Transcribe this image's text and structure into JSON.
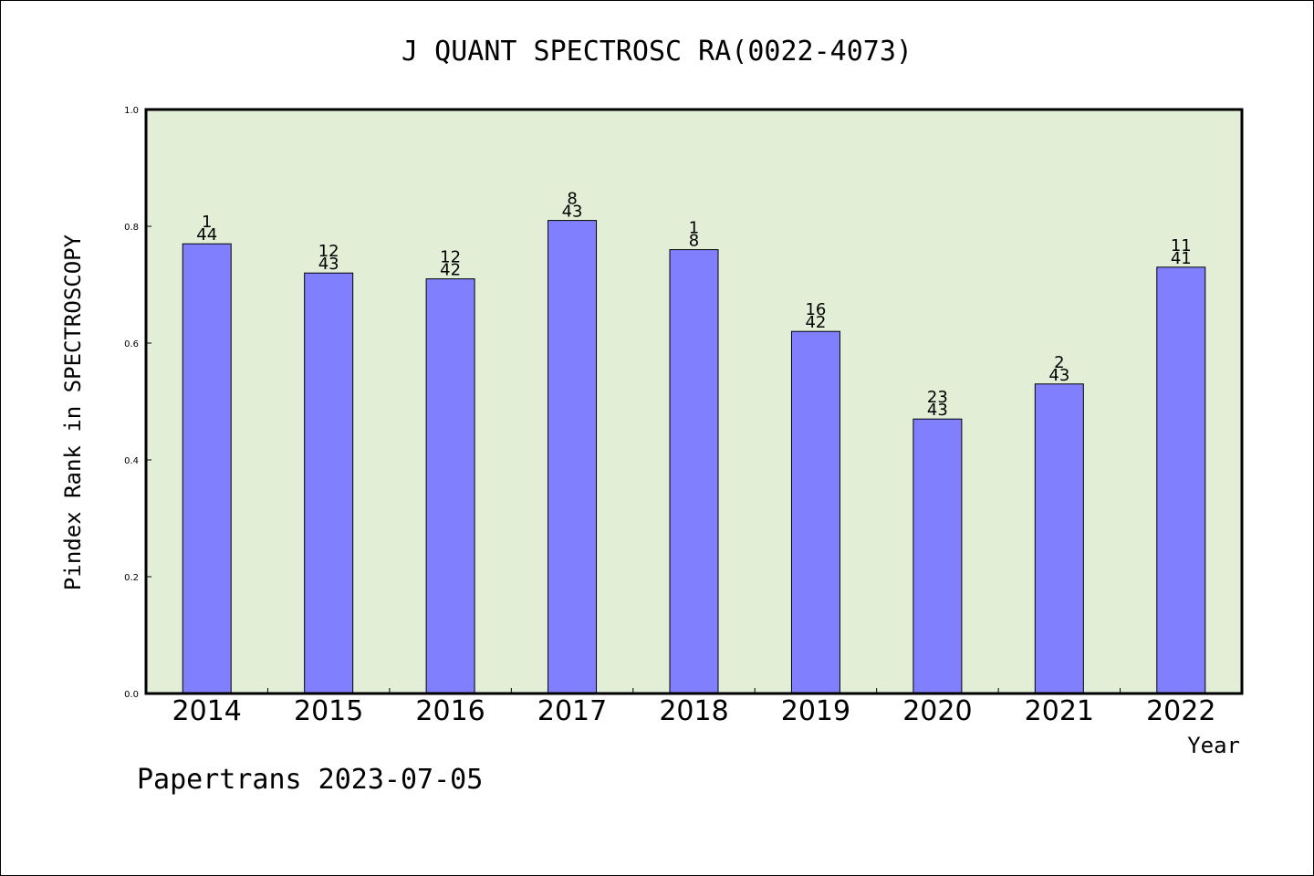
{
  "chart_data": {
    "type": "bar",
    "title": "J QUANT SPECTROSC RA(0022-4073)",
    "ylabel": "Pindex Rank in SPECTROSCOPY",
    "xlabel": "Year",
    "categories": [
      "2014",
      "2015",
      "2016",
      "2017",
      "2018",
      "2019",
      "2020",
      "2021",
      "2022"
    ],
    "values": [
      0.77,
      0.72,
      0.71,
      0.81,
      0.76,
      0.62,
      0.47,
      0.53,
      0.73
    ],
    "rank_labels": [
      "1",
      "12",
      "12",
      "8",
      "1",
      "16",
      "23",
      "2",
      "11"
    ],
    "total_labels": [
      "44",
      "43",
      "42",
      "43",
      "8",
      "42",
      "43",
      "43",
      "41"
    ],
    "yticks": [
      "0.0",
      "0.2",
      "0.4",
      "0.6",
      "0.8",
      "1.0"
    ],
    "ylim": [
      0,
      1.0
    ],
    "grid": false,
    "colors": {
      "plot_background": "#e2efd6",
      "bar_fill": "#8080ff",
      "bar_stroke": "#000000"
    }
  },
  "footer": {
    "text": "Papertrans 2023-07-05"
  }
}
